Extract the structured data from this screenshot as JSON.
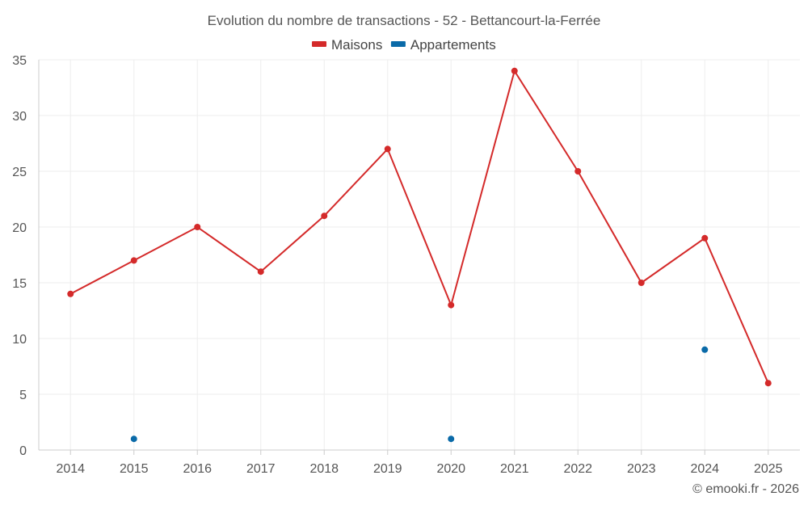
{
  "chart_data": {
    "type": "line",
    "title": "Evolution du nombre de transactions - 52 - Bettancourt-la-Ferrée",
    "xlabel": "",
    "ylabel": "",
    "categories": [
      "2014",
      "2015",
      "2016",
      "2017",
      "2018",
      "2019",
      "2020",
      "2021",
      "2022",
      "2023",
      "2024",
      "2025"
    ],
    "ylim": [
      0,
      35
    ],
    "yticks": [
      0,
      5,
      10,
      15,
      20,
      25,
      30,
      35
    ],
    "grid": true,
    "legend_position": "top-center",
    "series": [
      {
        "name": "Maisons",
        "color": "#d42a2a",
        "values": [
          14,
          17,
          20,
          16,
          21,
          27,
          13,
          34,
          25,
          15,
          19,
          6
        ],
        "connected": true
      },
      {
        "name": "Appartements",
        "color": "#0a6aa8",
        "values": [
          null,
          1,
          null,
          null,
          null,
          null,
          1,
          null,
          null,
          null,
          9,
          null
        ],
        "connected": false
      }
    ]
  },
  "credit": "© emooki.fr - 2026"
}
